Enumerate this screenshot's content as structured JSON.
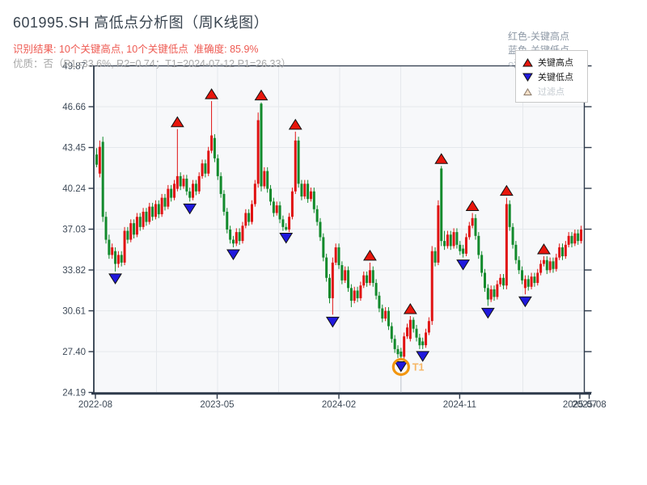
{
  "header": {
    "title": "601995.SH 高低点分析图（周K线图）",
    "result_line": "识别结果: 10个关键高点, 10个关键低点  准确度: 85.9%",
    "quality_line": "优质：否（R1=33.6%, R2=0.74；T1=2024-07-12 P1=26.33）",
    "color_key": {
      "high_label": "红色-关键高点",
      "low_label": "蓝色-关键低点",
      "filter_label": "○浅色-过滤点"
    }
  },
  "legend": {
    "items": [
      {
        "label": "关键高点",
        "marker": "red-up-triangle"
      },
      {
        "label": "关键低点",
        "marker": "blue-down-triangle"
      },
      {
        "label": "过滤点",
        "marker": "light-up-triangle"
      }
    ]
  },
  "chart_data": {
    "type": "candlestick",
    "symbol": "601995.SH",
    "period": "weekly",
    "title": "601995.SH 高低点分析图（周K线图）",
    "ylim": [
      24.19,
      49.87
    ],
    "grid": true,
    "y_tick_labels": [
      "49.87",
      "46.66",
      "43.45",
      "40.24",
      "37.03",
      "33.82",
      "30.61",
      "27.40",
      "24.19"
    ],
    "y_tick_values": [
      49.87,
      46.66,
      43.45,
      40.24,
      37.03,
      33.82,
      30.61,
      27.4,
      24.19
    ],
    "x_ticks": [
      {
        "label": "2022-08",
        "i": -0.4
      },
      {
        "label": "2023-05",
        "i": 38.8
      },
      {
        "label": "2024-02",
        "i": 78.0
      },
      {
        "label": "2024-11",
        "i": 116.9
      },
      {
        "label": "2025-07",
        "i": 155.6
      },
      {
        "label": "2025-08",
        "i": 158.6
      }
    ],
    "colors": {
      "up": "#e01212",
      "down": "#128a2c",
      "key_high": "#e8160c",
      "key_low": "#2019dd",
      "marker_stroke": "#111111",
      "filter_fill": "#f6e0c8",
      "filter_stroke": "#8a7a6a",
      "t1_ring": "#f2960f",
      "t1_text": "#f6b665",
      "t1_line": "#c9ced4",
      "grid": "#e5e8ec",
      "plot_bg": "#f7f8fa",
      "axis": "#2e3a4b",
      "tick_text": "#3e4a58"
    },
    "candles": [
      [
        42.9,
        43.4,
        41.9,
        42.1
      ],
      [
        41.4,
        44.0,
        41.1,
        43.5
      ],
      [
        43.9,
        44.3,
        37.6,
        38.0
      ],
      [
        38.0,
        38.4,
        35.9,
        36.2
      ],
      [
        36.2,
        36.6,
        34.7,
        35.0
      ],
      [
        35.0,
        35.9,
        34.7,
        35.6
      ],
      [
        35.3,
        35.6,
        33.7,
        34.3
      ],
      [
        34.3,
        35.3,
        34.0,
        35.0
      ],
      [
        35.0,
        35.3,
        34.1,
        34.4
      ],
      [
        34.4,
        37.2,
        34.2,
        36.9
      ],
      [
        36.9,
        37.2,
        35.9,
        36.2
      ],
      [
        36.2,
        37.8,
        36.0,
        37.5
      ],
      [
        37.5,
        37.8,
        36.3,
        36.6
      ],
      [
        36.6,
        38.3,
        36.4,
        38.0
      ],
      [
        38.0,
        38.3,
        36.9,
        37.2
      ],
      [
        37.2,
        38.7,
        37.0,
        38.4
      ],
      [
        38.4,
        38.7,
        37.3,
        37.6
      ],
      [
        37.6,
        39.1,
        37.4,
        38.8
      ],
      [
        38.8,
        39.1,
        37.7,
        38.0
      ],
      [
        38.0,
        39.3,
        37.8,
        39.0
      ],
      [
        39.0,
        39.3,
        37.9,
        38.2
      ],
      [
        38.2,
        39.8,
        38.0,
        39.5
      ],
      [
        39.5,
        39.8,
        38.5,
        38.8
      ],
      [
        38.8,
        40.5,
        38.6,
        40.2
      ],
      [
        40.2,
        40.5,
        39.2,
        39.5
      ],
      [
        39.5,
        40.9,
        39.3,
        40.6
      ],
      [
        40.2,
        44.9,
        40.0,
        41.2
      ],
      [
        41.2,
        41.5,
        40.1,
        40.4
      ],
      [
        40.4,
        41.3,
        40.2,
        41.0
      ],
      [
        41.0,
        41.3,
        39.7,
        40.0
      ],
      [
        40.0,
        40.3,
        39.2,
        39.5
      ],
      [
        39.5,
        40.9,
        39.3,
        40.6
      ],
      [
        40.6,
        40.9,
        39.7,
        40.0
      ],
      [
        40.0,
        41.5,
        39.8,
        41.2
      ],
      [
        41.2,
        42.5,
        41.0,
        42.2
      ],
      [
        42.2,
        42.5,
        41.1,
        41.4
      ],
      [
        41.4,
        43.5,
        41.2,
        43.2
      ],
      [
        43.2,
        47.1,
        43.0,
        44.4
      ],
      [
        44.2,
        44.5,
        42.3,
        42.6
      ],
      [
        42.6,
        42.9,
        40.9,
        41.2
      ],
      [
        41.2,
        41.5,
        39.5,
        39.8
      ],
      [
        39.8,
        40.1,
        38.1,
        38.4
      ],
      [
        38.4,
        38.7,
        36.7,
        37.0
      ],
      [
        37.0,
        37.3,
        35.9,
        36.2
      ],
      [
        36.2,
        36.5,
        35.6,
        35.9
      ],
      [
        35.9,
        37.1,
        35.7,
        36.8
      ],
      [
        36.8,
        37.1,
        35.8,
        36.1
      ],
      [
        36.1,
        37.6,
        35.9,
        37.3
      ],
      [
        37.3,
        38.6,
        37.1,
        38.3
      ],
      [
        38.3,
        38.6,
        37.3,
        37.6
      ],
      [
        37.6,
        39.3,
        37.4,
        39.0
      ],
      [
        39.0,
        40.9,
        38.8,
        40.6
      ],
      [
        40.6,
        46.2,
        40.3,
        45.6
      ],
      [
        46.9,
        47.0,
        40.0,
        40.4
      ],
      [
        40.4,
        41.9,
        40.2,
        41.6
      ],
      [
        41.6,
        41.9,
        39.9,
        40.2
      ],
      [
        40.2,
        40.5,
        38.9,
        39.2
      ],
      [
        39.2,
        39.5,
        38.0,
        38.3
      ],
      [
        38.3,
        39.2,
        38.1,
        38.9
      ],
      [
        38.9,
        39.2,
        37.5,
        37.8
      ],
      [
        37.8,
        38.1,
        36.9,
        37.2
      ],
      [
        37.2,
        37.5,
        36.9,
        37.0
      ],
      [
        37.0,
        38.3,
        36.8,
        38.0
      ],
      [
        38.0,
        40.3,
        37.8,
        40.0
      ],
      [
        40.0,
        44.7,
        39.8,
        44.0
      ],
      [
        44.0,
        44.3,
        40.3,
        40.6
      ],
      [
        40.6,
        40.9,
        39.3,
        39.6
      ],
      [
        39.6,
        40.9,
        39.4,
        40.6
      ],
      [
        40.6,
        40.9,
        39.1,
        39.4
      ],
      [
        39.4,
        40.3,
        39.2,
        40.0
      ],
      [
        40.0,
        40.3,
        38.3,
        38.6
      ],
      [
        38.6,
        38.9,
        37.3,
        37.6
      ],
      [
        37.6,
        37.9,
        36.1,
        36.4
      ],
      [
        36.4,
        36.7,
        34.5,
        34.8
      ],
      [
        34.8,
        35.1,
        32.9,
        33.2
      ],
      [
        33.2,
        33.5,
        31.2,
        31.6
      ],
      [
        31.6,
        34.8,
        30.3,
        34.4
      ],
      [
        34.4,
        35.9,
        34.2,
        35.6
      ],
      [
        35.6,
        35.9,
        33.9,
        34.2
      ],
      [
        34.2,
        34.5,
        32.7,
        33.0
      ],
      [
        33.0,
        34.1,
        32.8,
        33.8
      ],
      [
        33.8,
        34.1,
        32.1,
        32.4
      ],
      [
        32.4,
        32.7,
        30.9,
        31.4
      ],
      [
        31.4,
        32.5,
        31.2,
        32.2
      ],
      [
        32.2,
        32.5,
        31.3,
        31.6
      ],
      [
        31.6,
        32.9,
        31.4,
        32.6
      ],
      [
        32.6,
        33.7,
        32.4,
        33.4
      ],
      [
        33.4,
        33.7,
        32.5,
        32.8
      ],
      [
        32.8,
        34.4,
        32.6,
        33.8
      ],
      [
        33.8,
        34.1,
        32.5,
        32.8
      ],
      [
        32.8,
        33.1,
        31.5,
        31.8
      ],
      [
        31.8,
        32.1,
        30.5,
        30.8
      ],
      [
        30.8,
        31.1,
        29.7,
        30.0
      ],
      [
        30.0,
        30.9,
        29.8,
        30.6
      ],
      [
        30.6,
        30.9,
        29.1,
        29.4
      ],
      [
        29.4,
        29.7,
        28.1,
        28.4
      ],
      [
        28.4,
        28.7,
        27.3,
        27.6
      ],
      [
        27.6,
        27.9,
        26.9,
        27.2
      ],
      [
        27.4,
        27.7,
        26.8,
        27.0
      ],
      [
        27.0,
        28.9,
        26.8,
        28.6
      ],
      [
        28.6,
        29.6,
        28.4,
        29.3
      ],
      [
        28.4,
        30.2,
        28.2,
        29.9
      ],
      [
        29.9,
        30.1,
        28.9,
        29.2
      ],
      [
        29.2,
        29.5,
        28.2,
        28.5
      ],
      [
        28.5,
        28.8,
        27.6,
        27.9
      ],
      [
        28.2,
        28.5,
        27.6,
        27.9
      ],
      [
        27.9,
        29.2,
        27.7,
        28.9
      ],
      [
        28.9,
        30.1,
        28.7,
        29.8
      ],
      [
        29.8,
        35.7,
        29.5,
        35.3
      ],
      [
        35.3,
        35.6,
        34.1,
        34.4
      ],
      [
        34.4,
        39.3,
        34.2,
        38.9
      ],
      [
        41.8,
        42.0,
        35.7,
        36.1
      ],
      [
        36.1,
        36.9,
        35.4,
        35.7
      ],
      [
        35.7,
        36.9,
        35.5,
        36.6
      ],
      [
        36.6,
        36.9,
        35.4,
        35.7
      ],
      [
        35.7,
        37.1,
        35.5,
        36.8
      ],
      [
        36.8,
        37.1,
        35.5,
        35.8
      ],
      [
        35.8,
        36.1,
        35.0,
        35.3
      ],
      [
        35.5,
        35.8,
        34.8,
        35.1
      ],
      [
        35.1,
        36.7,
        34.9,
        36.4
      ],
      [
        36.4,
        37.6,
        36.2,
        37.3
      ],
      [
        37.3,
        38.3,
        37.1,
        37.9
      ],
      [
        37.9,
        38.2,
        36.2,
        36.5
      ],
      [
        36.5,
        36.8,
        34.7,
        35.0
      ],
      [
        35.0,
        35.3,
        33.3,
        33.6
      ],
      [
        33.6,
        33.9,
        32.1,
        32.4
      ],
      [
        32.4,
        32.7,
        31.0,
        31.5
      ],
      [
        31.5,
        32.6,
        31.3,
        32.3
      ],
      [
        32.3,
        32.6,
        31.4,
        31.7
      ],
      [
        31.7,
        33.0,
        31.5,
        32.7
      ],
      [
        32.7,
        33.5,
        32.5,
        33.2
      ],
      [
        33.2,
        33.5,
        32.3,
        32.6
      ],
      [
        32.6,
        39.5,
        32.3,
        39.0
      ],
      [
        39.0,
        39.3,
        36.9,
        37.2
      ],
      [
        37.2,
        37.5,
        35.5,
        35.8
      ],
      [
        35.8,
        36.1,
        34.3,
        34.6
      ],
      [
        34.6,
        34.9,
        33.5,
        33.8
      ],
      [
        33.8,
        34.1,
        32.7,
        33.0
      ],
      [
        32.4,
        33.4,
        31.9,
        33.1
      ],
      [
        33.1,
        33.4,
        32.2,
        32.5
      ],
      [
        32.5,
        33.6,
        32.3,
        33.3
      ],
      [
        33.3,
        33.6,
        32.5,
        32.8
      ],
      [
        32.8,
        33.9,
        32.6,
        33.6
      ],
      [
        33.6,
        34.6,
        33.4,
        34.3
      ],
      [
        34.3,
        34.9,
        34.1,
        34.6
      ],
      [
        34.6,
        34.9,
        33.5,
        33.8
      ],
      [
        33.8,
        34.8,
        33.6,
        34.5
      ],
      [
        34.5,
        34.8,
        33.6,
        33.9
      ],
      [
        33.9,
        35.1,
        33.7,
        34.8
      ],
      [
        34.8,
        35.9,
        34.6,
        35.6
      ],
      [
        35.6,
        35.9,
        34.6,
        34.9
      ],
      [
        34.9,
        36.1,
        34.7,
        35.8
      ],
      [
        35.8,
        36.8,
        35.6,
        36.5
      ],
      [
        36.5,
        36.8,
        35.6,
        35.9
      ],
      [
        35.9,
        37.0,
        35.7,
        36.7
      ],
      [
        36.7,
        37.0,
        35.8,
        36.1
      ],
      [
        36.1,
        37.3,
        35.9,
        37.0
      ]
    ],
    "key_highs": [
      {
        "i": 26,
        "price": 44.9
      },
      {
        "i": 37,
        "price": 47.1
      },
      {
        "i": 53,
        "price": 47.0
      },
      {
        "i": 64,
        "price": 44.7
      },
      {
        "i": 88,
        "price": 34.4
      },
      {
        "i": 101,
        "price": 30.2
      },
      {
        "i": 111,
        "price": 42.0
      },
      {
        "i": 121,
        "price": 38.3
      },
      {
        "i": 132,
        "price": 39.5
      },
      {
        "i": 144,
        "price": 34.9
      }
    ],
    "key_lows": [
      {
        "i": 6,
        "price": 33.7
      },
      {
        "i": 30,
        "price": 39.2
      },
      {
        "i": 44,
        "price": 35.6
      },
      {
        "i": 61,
        "price": 36.9
      },
      {
        "i": 76,
        "price": 30.3
      },
      {
        "i": 98,
        "price": 26.8
      },
      {
        "i": 105,
        "price": 27.6
      },
      {
        "i": 118,
        "price": 34.8
      },
      {
        "i": 126,
        "price": 31.0
      },
      {
        "i": 138,
        "price": 31.9
      }
    ],
    "t1_marker": {
      "i": 98,
      "label": "T1",
      "date": "2024-07-12",
      "price": 26.33
    }
  }
}
